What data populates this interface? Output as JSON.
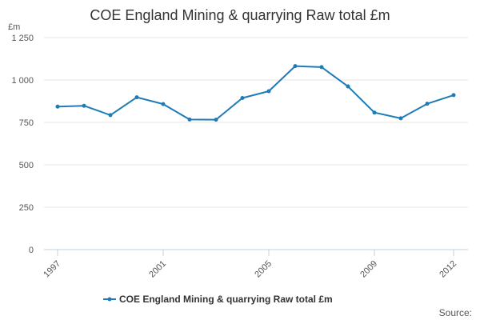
{
  "chart_data": {
    "type": "line",
    "title": "COE England Mining & quarrying Raw total £m",
    "y_unit_label": "£m",
    "xlabel": "",
    "ylabel": "£m",
    "x": [
      1997,
      1998,
      1999,
      2000,
      2001,
      2002,
      2003,
      2004,
      2005,
      2006,
      2007,
      2008,
      2009,
      2010,
      2011,
      2012
    ],
    "x_tick_labels": [
      "1997",
      "2001",
      "2005",
      "2009",
      "2012"
    ],
    "x_tick_values": [
      1997,
      2001,
      2005,
      2009,
      2012
    ],
    "ylim": [
      0,
      1250
    ],
    "y_ticks": [
      0,
      250,
      500,
      750,
      1000,
      1250
    ],
    "y_tick_labels": [
      "0",
      "250",
      "500",
      "750",
      "1 000",
      "1 250"
    ],
    "series": [
      {
        "name": "COE England Mining & quarrying Raw total £m",
        "color": "#1f7bb6",
        "values": [
          843,
          848,
          793,
          898,
          858,
          767,
          766,
          894,
          934,
          1082,
          1076,
          962,
          808,
          774,
          860,
          911
        ]
      }
    ],
    "legend_position": "bottom-center",
    "grid": true
  },
  "footer": {
    "source_label": "Source:"
  }
}
